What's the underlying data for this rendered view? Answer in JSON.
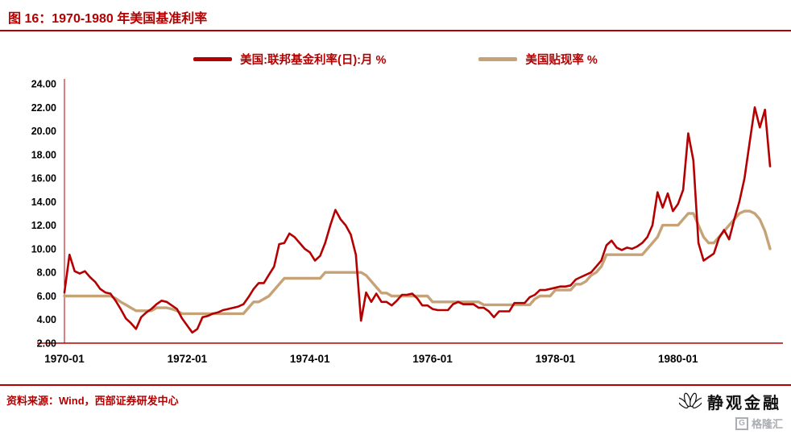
{
  "page": {
    "title": "图 16：1970-1980 年美国基准利率",
    "source": "资料来源：Wind，西部证券研发中心",
    "logo_text": "静观金融",
    "watermark": "格隆汇",
    "watermark_icon": "G"
  },
  "colors": {
    "accent": "#b40000",
    "series_red": "#b40000",
    "series_tan": "#c6a376",
    "text": "#000000"
  },
  "chart_data": {
    "type": "line",
    "title": "1970-1980 年美国基准利率",
    "xlabel": "",
    "ylabel": "%",
    "unit": "%",
    "grid": false,
    "legend_position": "top",
    "ylim": [
      2,
      24
    ],
    "y_tick_step": 2,
    "y_tick_labels": [
      "2.00",
      "4.00",
      "6.00",
      "8.00",
      "10.00",
      "12.00",
      "14.00",
      "16.00",
      "18.00",
      "20.00",
      "22.00",
      "24.00"
    ],
    "x_start": "1970-01",
    "x_end": "1981-07",
    "x_frequency": "monthly",
    "x_ticks": [
      {
        "month_index": 0,
        "label": "1970-01"
      },
      {
        "month_index": 24,
        "label": "1972-01"
      },
      {
        "month_index": 48,
        "label": "1974-01"
      },
      {
        "month_index": 72,
        "label": "1976-01"
      },
      {
        "month_index": 96,
        "label": "1978-01"
      },
      {
        "month_index": 120,
        "label": "1980-01"
      }
    ],
    "series": [
      {
        "name": "美国:联邦基金利率(日):月 %",
        "id": "fed-funds-rate",
        "color": "#b40000",
        "values": [
          6.3,
          9.5,
          8.1,
          7.9,
          8.1,
          7.6,
          7.2,
          6.6,
          6.3,
          6.2,
          5.6,
          4.9,
          4.1,
          3.7,
          3.2,
          4.2,
          4.6,
          4.9,
          5.3,
          5.6,
          5.5,
          5.2,
          4.9,
          4.1,
          3.5,
          2.9,
          3.2,
          4.2,
          4.3,
          4.5,
          4.6,
          4.8,
          4.9,
          5.0,
          5.1,
          5.3,
          5.9,
          6.6,
          7.1,
          7.1,
          7.8,
          8.5,
          10.4,
          10.5,
          11.3,
          11.0,
          10.5,
          10.0,
          9.7,
          9.0,
          9.4,
          10.5,
          12.0,
          13.3,
          12.5,
          12.0,
          11.2,
          9.5,
          3.9,
          6.3,
          5.5,
          6.2,
          5.5,
          5.5,
          5.2,
          5.6,
          6.1,
          6.1,
          6.2,
          5.8,
          5.2,
          5.2,
          4.9,
          4.8,
          4.8,
          4.8,
          5.3,
          5.5,
          5.3,
          5.3,
          5.3,
          5.0,
          5.0,
          4.7,
          4.2,
          4.7,
          4.7,
          4.7,
          5.4,
          5.4,
          5.4,
          5.9,
          6.1,
          6.5,
          6.5,
          6.6,
          6.7,
          6.8,
          6.8,
          6.9,
          7.4,
          7.6,
          7.8,
          8.0,
          8.5,
          9.0,
          10.3,
          10.7,
          10.1,
          9.9,
          10.1,
          10.0,
          10.2,
          10.5,
          11.0,
          12.0,
          14.8,
          13.5,
          14.7,
          13.2,
          13.8,
          15.0,
          19.8,
          17.5,
          10.5,
          9.0,
          9.3,
          9.6,
          10.9,
          11.6,
          10.8,
          12.5,
          14.0,
          16.0,
          19.0,
          22.0,
          20.3,
          21.8,
          17.0
        ]
      },
      {
        "name": "美国贴现率 %",
        "id": "discount-rate",
        "color": "#c6a376",
        "values": [
          6.0,
          6.0,
          6.0,
          6.0,
          6.0,
          6.0,
          6.0,
          6.0,
          6.0,
          6.0,
          5.8,
          5.5,
          5.25,
          5.0,
          4.75,
          4.75,
          4.75,
          4.75,
          5.0,
          5.0,
          5.0,
          4.9,
          4.75,
          4.5,
          4.5,
          4.5,
          4.5,
          4.5,
          4.5,
          4.5,
          4.5,
          4.5,
          4.5,
          4.5,
          4.5,
          4.5,
          5.0,
          5.5,
          5.5,
          5.75,
          6.0,
          6.5,
          7.0,
          7.5,
          7.5,
          7.5,
          7.5,
          7.5,
          7.5,
          7.5,
          7.5,
          8.0,
          8.0,
          8.0,
          8.0,
          8.0,
          8.0,
          8.0,
          8.0,
          7.75,
          7.25,
          6.75,
          6.25,
          6.25,
          6.0,
          6.0,
          6.0,
          6.0,
          6.0,
          6.0,
          6.0,
          6.0,
          5.5,
          5.5,
          5.5,
          5.5,
          5.5,
          5.5,
          5.5,
          5.5,
          5.5,
          5.5,
          5.25,
          5.25,
          5.25,
          5.25,
          5.25,
          5.25,
          5.25,
          5.25,
          5.25,
          5.25,
          5.75,
          6.0,
          6.0,
          6.0,
          6.5,
          6.5,
          6.5,
          6.5,
          7.0,
          7.0,
          7.25,
          7.75,
          8.0,
          8.5,
          9.5,
          9.5,
          9.5,
          9.5,
          9.5,
          9.5,
          9.5,
          9.5,
          10.0,
          10.5,
          11.0,
          12.0,
          12.0,
          12.0,
          12.0,
          12.5,
          13.0,
          13.0,
          12.0,
          11.0,
          10.5,
          10.5,
          11.0,
          11.5,
          12.0,
          12.5,
          13.0,
          13.2,
          13.2,
          13.0,
          12.5,
          11.5,
          10.0
        ]
      }
    ]
  }
}
